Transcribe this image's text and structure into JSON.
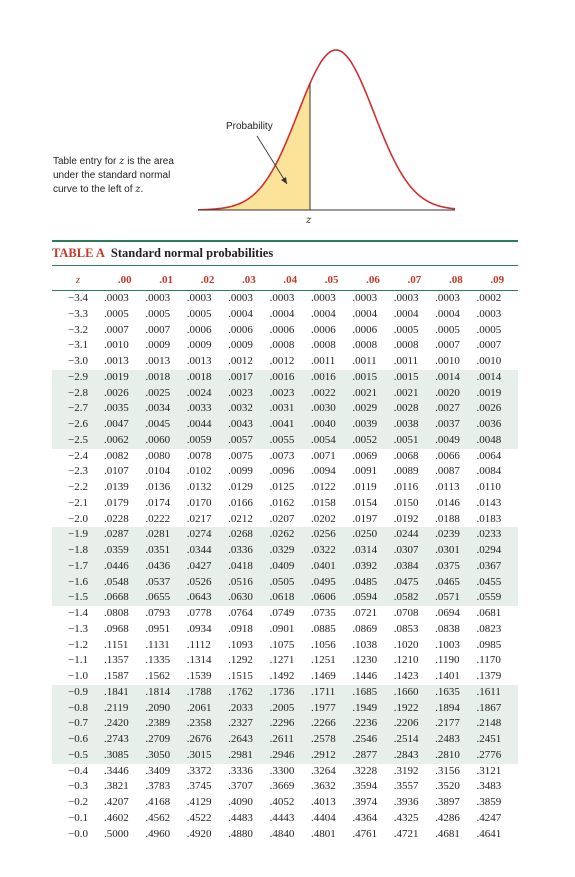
{
  "figure": {
    "probability_label": "Probability",
    "z_label": "z",
    "caption_pre": "Table entry for ",
    "caption_var": "z",
    "caption_mid": " is the area under the standard normal curve to the left of ",
    "caption_var2": "z",
    "caption_end": ".",
    "colors": {
      "curve": "#d03030",
      "fill": "#fbe39a",
      "axis": "#333333"
    }
  },
  "table": {
    "tag": "TABLE A",
    "title": "Standard normal probabilities",
    "z_header": "z",
    "columns": [
      ".00",
      ".01",
      ".02",
      ".03",
      ".04",
      ".05",
      ".06",
      ".07",
      ".08",
      ".09"
    ],
    "rows": [
      {
        "z": "−3.4",
        "v": [
          ".0003",
          ".0003",
          ".0003",
          ".0003",
          ".0003",
          ".0003",
          ".0003",
          ".0003",
          ".0003",
          ".0002"
        ]
      },
      {
        "z": "−3.3",
        "v": [
          ".0005",
          ".0005",
          ".0005",
          ".0004",
          ".0004",
          ".0004",
          ".0004",
          ".0004",
          ".0004",
          ".0003"
        ]
      },
      {
        "z": "−3.2",
        "v": [
          ".0007",
          ".0007",
          ".0006",
          ".0006",
          ".0006",
          ".0006",
          ".0006",
          ".0005",
          ".0005",
          ".0005"
        ]
      },
      {
        "z": "−3.1",
        "v": [
          ".0010",
          ".0009",
          ".0009",
          ".0009",
          ".0008",
          ".0008",
          ".0008",
          ".0008",
          ".0007",
          ".0007"
        ]
      },
      {
        "z": "−3.0",
        "v": [
          ".0013",
          ".0013",
          ".0013",
          ".0012",
          ".0012",
          ".0011",
          ".0011",
          ".0011",
          ".0010",
          ".0010"
        ]
      },
      {
        "z": "−2.9",
        "v": [
          ".0019",
          ".0018",
          ".0018",
          ".0017",
          ".0016",
          ".0016",
          ".0015",
          ".0015",
          ".0014",
          ".0014"
        ]
      },
      {
        "z": "−2.8",
        "v": [
          ".0026",
          ".0025",
          ".0024",
          ".0023",
          ".0023",
          ".0022",
          ".0021",
          ".0021",
          ".0020",
          ".0019"
        ]
      },
      {
        "z": "−2.7",
        "v": [
          ".0035",
          ".0034",
          ".0033",
          ".0032",
          ".0031",
          ".0030",
          ".0029",
          ".0028",
          ".0027",
          ".0026"
        ]
      },
      {
        "z": "−2.6",
        "v": [
          ".0047",
          ".0045",
          ".0044",
          ".0043",
          ".0041",
          ".0040",
          ".0039",
          ".0038",
          ".0037",
          ".0036"
        ]
      },
      {
        "z": "−2.5",
        "v": [
          ".0062",
          ".0060",
          ".0059",
          ".0057",
          ".0055",
          ".0054",
          ".0052",
          ".0051",
          ".0049",
          ".0048"
        ]
      },
      {
        "z": "−2.4",
        "v": [
          ".0082",
          ".0080",
          ".0078",
          ".0075",
          ".0073",
          ".0071",
          ".0069",
          ".0068",
          ".0066",
          ".0064"
        ]
      },
      {
        "z": "−2.3",
        "v": [
          ".0107",
          ".0104",
          ".0102",
          ".0099",
          ".0096",
          ".0094",
          ".0091",
          ".0089",
          ".0087",
          ".0084"
        ]
      },
      {
        "z": "−2.2",
        "v": [
          ".0139",
          ".0136",
          ".0132",
          ".0129",
          ".0125",
          ".0122",
          ".0119",
          ".0116",
          ".0113",
          ".0110"
        ]
      },
      {
        "z": "−2.1",
        "v": [
          ".0179",
          ".0174",
          ".0170",
          ".0166",
          ".0162",
          ".0158",
          ".0154",
          ".0150",
          ".0146",
          ".0143"
        ]
      },
      {
        "z": "−2.0",
        "v": [
          ".0228",
          ".0222",
          ".0217",
          ".0212",
          ".0207",
          ".0202",
          ".0197",
          ".0192",
          ".0188",
          ".0183"
        ]
      },
      {
        "z": "−1.9",
        "v": [
          ".0287",
          ".0281",
          ".0274",
          ".0268",
          ".0262",
          ".0256",
          ".0250",
          ".0244",
          ".0239",
          ".0233"
        ]
      },
      {
        "z": "−1.8",
        "v": [
          ".0359",
          ".0351",
          ".0344",
          ".0336",
          ".0329",
          ".0322",
          ".0314",
          ".0307",
          ".0301",
          ".0294"
        ]
      },
      {
        "z": "−1.7",
        "v": [
          ".0446",
          ".0436",
          ".0427",
          ".0418",
          ".0409",
          ".0401",
          ".0392",
          ".0384",
          ".0375",
          ".0367"
        ]
      },
      {
        "z": "−1.6",
        "v": [
          ".0548",
          ".0537",
          ".0526",
          ".0516",
          ".0505",
          ".0495",
          ".0485",
          ".0475",
          ".0465",
          ".0455"
        ]
      },
      {
        "z": "−1.5",
        "v": [
          ".0668",
          ".0655",
          ".0643",
          ".0630",
          ".0618",
          ".0606",
          ".0594",
          ".0582",
          ".0571",
          ".0559"
        ]
      },
      {
        "z": "−1.4",
        "v": [
          ".0808",
          ".0793",
          ".0778",
          ".0764",
          ".0749",
          ".0735",
          ".0721",
          ".0708",
          ".0694",
          ".0681"
        ]
      },
      {
        "z": "−1.3",
        "v": [
          ".0968",
          ".0951",
          ".0934",
          ".0918",
          ".0901",
          ".0885",
          ".0869",
          ".0853",
          ".0838",
          ".0823"
        ]
      },
      {
        "z": "−1.2",
        "v": [
          ".1151",
          ".1131",
          ".1112",
          ".1093",
          ".1075",
          ".1056",
          ".1038",
          ".1020",
          ".1003",
          ".0985"
        ]
      },
      {
        "z": "−1.1",
        "v": [
          ".1357",
          ".1335",
          ".1314",
          ".1292",
          ".1271",
          ".1251",
          ".1230",
          ".1210",
          ".1190",
          ".1170"
        ]
      },
      {
        "z": "−1.0",
        "v": [
          ".1587",
          ".1562",
          ".1539",
          ".1515",
          ".1492",
          ".1469",
          ".1446",
          ".1423",
          ".1401",
          ".1379"
        ]
      },
      {
        "z": "−0.9",
        "v": [
          ".1841",
          ".1814",
          ".1788",
          ".1762",
          ".1736",
          ".1711",
          ".1685",
          ".1660",
          ".1635",
          ".1611"
        ]
      },
      {
        "z": "−0.8",
        "v": [
          ".2119",
          ".2090",
          ".2061",
          ".2033",
          ".2005",
          ".1977",
          ".1949",
          ".1922",
          ".1894",
          ".1867"
        ]
      },
      {
        "z": "−0.7",
        "v": [
          ".2420",
          ".2389",
          ".2358",
          ".2327",
          ".2296",
          ".2266",
          ".2236",
          ".2206",
          ".2177",
          ".2148"
        ]
      },
      {
        "z": "−0.6",
        "v": [
          ".2743",
          ".2709",
          ".2676",
          ".2643",
          ".2611",
          ".2578",
          ".2546",
          ".2514",
          ".2483",
          ".2451"
        ]
      },
      {
        "z": "−0.5",
        "v": [
          ".3085",
          ".3050",
          ".3015",
          ".2981",
          ".2946",
          ".2912",
          ".2877",
          ".2843",
          ".2810",
          ".2776"
        ]
      },
      {
        "z": "−0.4",
        "v": [
          ".3446",
          ".3409",
          ".3372",
          ".3336",
          ".3300",
          ".3264",
          ".3228",
          ".3192",
          ".3156",
          ".3121"
        ]
      },
      {
        "z": "−0.3",
        "v": [
          ".3821",
          ".3783",
          ".3745",
          ".3707",
          ".3669",
          ".3632",
          ".3594",
          ".3557",
          ".3520",
          ".3483"
        ]
      },
      {
        "z": "−0.2",
        "v": [
          ".4207",
          ".4168",
          ".4129",
          ".4090",
          ".4052",
          ".4013",
          ".3974",
          ".3936",
          ".3897",
          ".3859"
        ]
      },
      {
        "z": "−0.1",
        "v": [
          ".4602",
          ".4562",
          ".4522",
          ".4483",
          ".4443",
          ".4404",
          ".4364",
          ".4325",
          ".4286",
          ".4247"
        ]
      },
      {
        "z": "−0.0",
        "v": [
          ".5000",
          ".4960",
          ".4920",
          ".4880",
          ".4840",
          ".4801",
          ".4761",
          ".4721",
          ".4681",
          ".4641"
        ]
      }
    ]
  }
}
